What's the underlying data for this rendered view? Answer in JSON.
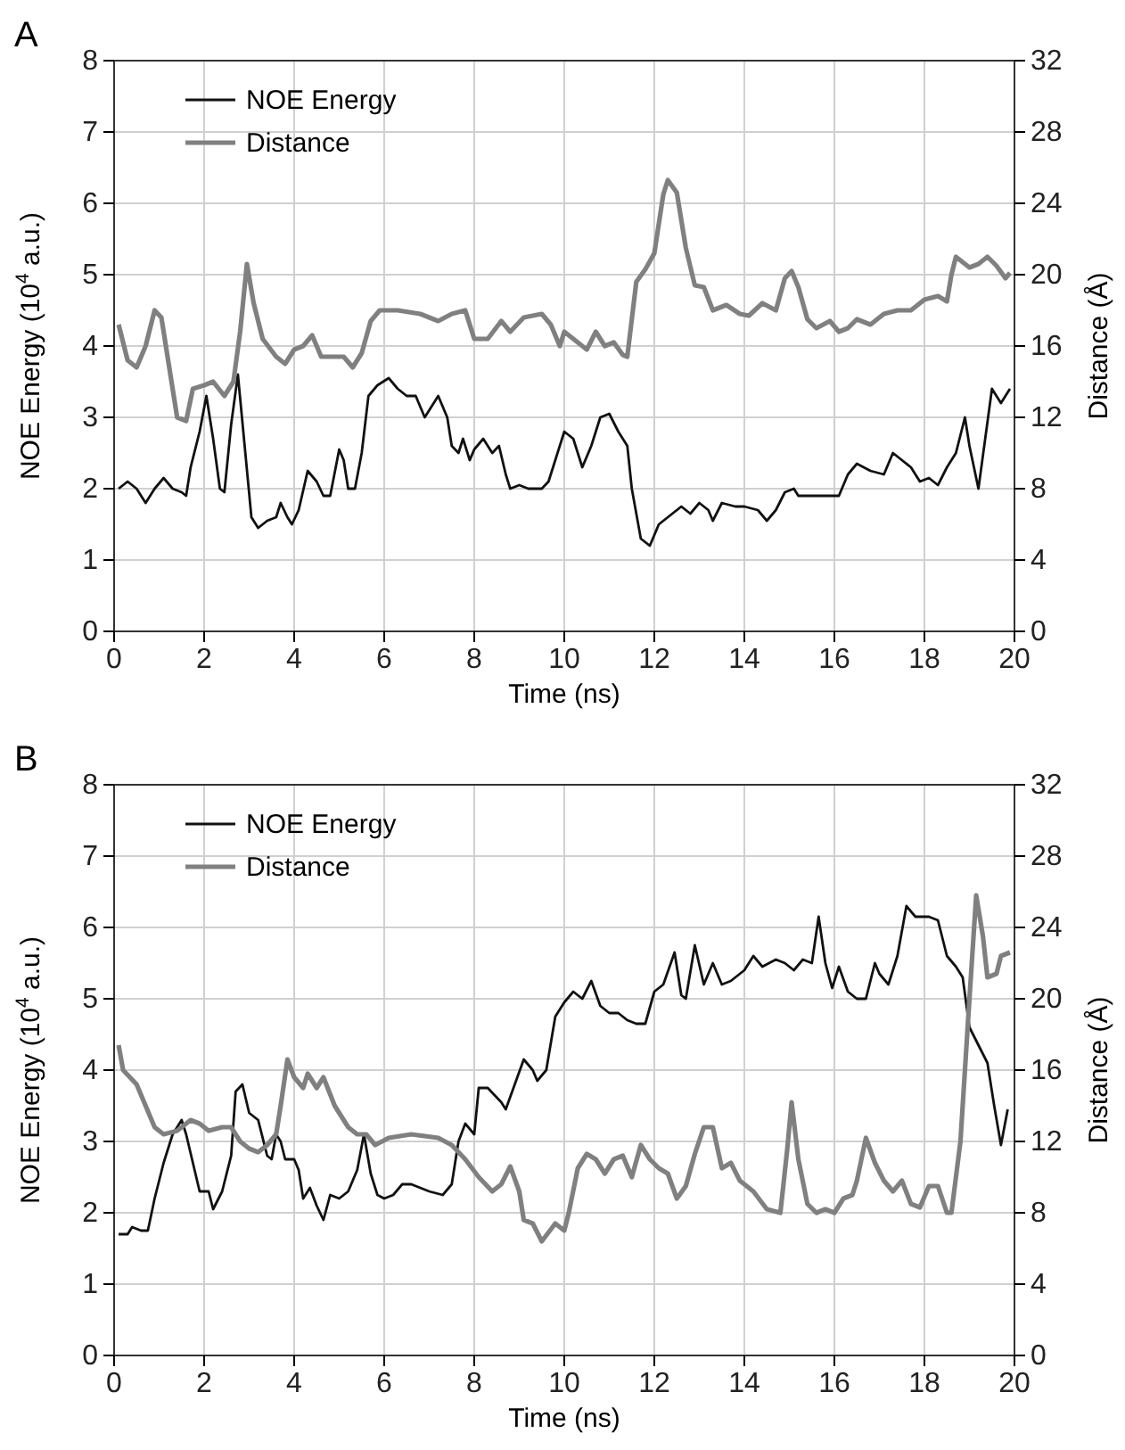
{
  "chart_data": [
    {
      "type": "line",
      "title": "A",
      "xlabel": "Time (ns)",
      "ylabel": "NOE Energy (10$^{4}$ a.u.)",
      "y2label": "Distance (Å)",
      "xlim": [
        0,
        20
      ],
      "xticks": [
        0,
        2,
        4,
        6,
        8,
        10,
        12,
        14,
        16,
        18,
        20
      ],
      "ylim": [
        0,
        8
      ],
      "yticks": [
        0,
        1,
        2,
        3,
        4,
        5,
        6,
        7,
        8
      ],
      "y2lim": [
        0,
        32
      ],
      "y2ticks": [
        0,
        4,
        8,
        12,
        16,
        20,
        24,
        28,
        32
      ],
      "grid": true,
      "legend": "top left",
      "marker": "none",
      "line_style": "solid",
      "series": [
        {
          "name": "NOE Energy",
          "color": "#111111",
          "x": [
            0.1,
            0.3,
            0.5,
            0.7,
            0.9,
            1.1,
            1.3,
            1.5,
            1.6,
            1.7,
            1.9,
            2.05,
            2.2,
            2.35,
            2.45,
            2.6,
            2.75,
            2.9,
            3.05,
            3.2,
            3.4,
            3.6,
            3.7,
            3.85,
            3.95,
            4.1,
            4.3,
            4.5,
            4.65,
            4.8,
            5.0,
            5.1,
            5.2,
            5.35,
            5.5,
            5.65,
            5.85,
            6.1,
            6.3,
            6.5,
            6.7,
            6.9,
            7.0,
            7.2,
            7.4,
            7.5,
            7.65,
            7.75,
            7.9,
            8.0,
            8.2,
            8.4,
            8.55,
            8.7,
            8.8,
            9.0,
            9.2,
            9.5,
            9.65,
            9.8,
            10.0,
            10.2,
            10.4,
            10.6,
            10.8,
            11.0,
            11.2,
            11.4,
            11.5,
            11.7,
            11.9,
            12.1,
            12.3,
            12.6,
            12.8,
            13.0,
            13.2,
            13.3,
            13.5,
            13.8,
            14.0,
            14.3,
            14.5,
            14.7,
            14.9,
            15.1,
            15.2,
            15.5,
            15.8,
            16.1,
            16.3,
            16.5,
            16.8,
            17.1,
            17.3,
            17.5,
            17.7,
            17.9,
            18.1,
            18.3,
            18.5,
            18.7,
            18.9,
            19.0,
            19.2,
            19.35,
            19.5,
            19.7,
            19.9
          ],
          "values": [
            2.0,
            2.1,
            2.0,
            1.8,
            2.0,
            2.15,
            2.0,
            1.95,
            1.9,
            2.3,
            2.8,
            3.3,
            2.7,
            2.0,
            1.95,
            2.9,
            3.6,
            2.6,
            1.6,
            1.45,
            1.55,
            1.6,
            1.8,
            1.6,
            1.5,
            1.7,
            2.25,
            2.1,
            1.9,
            1.9,
            2.55,
            2.4,
            2.0,
            2.0,
            2.5,
            3.3,
            3.45,
            3.55,
            3.4,
            3.3,
            3.3,
            3.0,
            3.1,
            3.3,
            3.0,
            2.6,
            2.5,
            2.7,
            2.4,
            2.55,
            2.7,
            2.5,
            2.6,
            2.2,
            2.0,
            2.05,
            2.0,
            2.0,
            2.1,
            2.4,
            2.8,
            2.7,
            2.3,
            2.6,
            3.0,
            3.05,
            2.8,
            2.6,
            2.0,
            1.3,
            1.2,
            1.5,
            1.6,
            1.75,
            1.65,
            1.8,
            1.7,
            1.55,
            1.8,
            1.75,
            1.75,
            1.7,
            1.55,
            1.7,
            1.95,
            2.0,
            1.9,
            1.9,
            1.9,
            1.9,
            2.2,
            2.35,
            2.25,
            2.2,
            2.5,
            2.4,
            2.3,
            2.1,
            2.15,
            2.05,
            2.3,
            2.5,
            3.0,
            2.6,
            2.0,
            2.7,
            3.4,
            3.2,
            3.4
          ]
        },
        {
          "name": "Distance",
          "color": "#808080",
          "axis": "y2",
          "x": [
            0.1,
            0.3,
            0.5,
            0.7,
            0.9,
            1.05,
            1.2,
            1.4,
            1.6,
            1.75,
            2.0,
            2.2,
            2.45,
            2.65,
            2.8,
            2.95,
            3.1,
            3.3,
            3.6,
            3.8,
            4.0,
            4.2,
            4.4,
            4.6,
            4.9,
            5.1,
            5.3,
            5.5,
            5.7,
            5.9,
            6.3,
            6.8,
            7.2,
            7.5,
            7.8,
            8.0,
            8.3,
            8.6,
            8.8,
            9.1,
            9.5,
            9.7,
            9.9,
            10.0,
            10.3,
            10.5,
            10.7,
            10.9,
            11.1,
            11.3,
            11.4,
            11.6,
            11.8,
            12.0,
            12.2,
            12.3,
            12.5,
            12.7,
            12.9,
            13.1,
            13.3,
            13.6,
            13.9,
            14.1,
            14.4,
            14.7,
            14.9,
            15.05,
            15.2,
            15.4,
            15.6,
            15.9,
            16.1,
            16.3,
            16.5,
            16.8,
            17.1,
            17.4,
            17.7,
            18.0,
            18.3,
            18.5,
            18.6,
            18.7,
            19.0,
            19.2,
            19.4,
            19.6,
            19.8,
            19.9
          ],
          "values": [
            17.2,
            15.2,
            14.8,
            16,
            18,
            17.6,
            15.2,
            12,
            11.8,
            13.6,
            13.8,
            14,
            13.2,
            14,
            16.8,
            20.6,
            18.4,
            16.4,
            15.4,
            15,
            15.8,
            16,
            16.6,
            15.4,
            15.4,
            15.4,
            14.8,
            15.6,
            17.4,
            18,
            18,
            17.8,
            17.4,
            17.8,
            18,
            16.4,
            16.4,
            17.4,
            16.8,
            17.6,
            17.8,
            17.2,
            16,
            16.8,
            16.2,
            15.8,
            16.8,
            16.0,
            16.2,
            15.5,
            15.4,
            19.6,
            20.3,
            21.2,
            24.5,
            25.3,
            24.6,
            21.5,
            19.4,
            19.3,
            18,
            18.3,
            17.8,
            17.7,
            18.4,
            18,
            19.8,
            20.2,
            19.3,
            17.5,
            17.0,
            17.4,
            16.8,
            17.0,
            17.5,
            17.2,
            17.8,
            18,
            18,
            18.6,
            18.8,
            18.5,
            20.0,
            21.0,
            20.4,
            20.6,
            21.0,
            20.5,
            19.8,
            20.1
          ]
        }
      ]
    },
    {
      "type": "line",
      "title": "B",
      "xlabel": "Time (ns)",
      "ylabel": "NOE Energy (10$^{4}$ a.u.)",
      "y2label": "Distance (Å)",
      "xlim": [
        0,
        20
      ],
      "xticks": [
        0,
        2,
        4,
        6,
        8,
        10,
        12,
        14,
        16,
        18,
        20
      ],
      "ylim": [
        0,
        8
      ],
      "yticks": [
        0,
        1,
        2,
        3,
        4,
        5,
        6,
        7,
        8
      ],
      "y2lim": [
        0,
        32
      ],
      "y2ticks": [
        0,
        4,
        8,
        12,
        16,
        20,
        24,
        28,
        32
      ],
      "grid": true,
      "legend": "top left",
      "marker": "none",
      "line_style": "solid",
      "series": [
        {
          "name": "NOE Energy",
          "color": "#111111",
          "x": [
            0.1,
            0.3,
            0.4,
            0.6,
            0.75,
            0.9,
            1.1,
            1.3,
            1.5,
            1.6,
            1.75,
            1.9,
            2.1,
            2.2,
            2.4,
            2.6,
            2.7,
            2.85,
            3.0,
            3.2,
            3.4,
            3.5,
            3.6,
            3.7,
            3.8,
            4.0,
            4.1,
            4.2,
            4.35,
            4.5,
            4.65,
            4.8,
            5.0,
            5.2,
            5.4,
            5.55,
            5.7,
            5.85,
            6.0,
            6.2,
            6.4,
            6.6,
            6.8,
            7.0,
            7.3,
            7.5,
            7.65,
            7.8,
            8.0,
            8.1,
            8.3,
            8.6,
            8.7,
            8.9,
            9.1,
            9.3,
            9.4,
            9.6,
            9.8,
            10.0,
            10.2,
            10.4,
            10.6,
            10.8,
            11.0,
            11.2,
            11.4,
            11.6,
            11.8,
            12.0,
            12.2,
            12.45,
            12.6,
            12.7,
            12.9,
            13.1,
            13.3,
            13.5,
            13.7,
            14.0,
            14.2,
            14.4,
            14.7,
            14.9,
            15.1,
            15.3,
            15.5,
            15.65,
            15.8,
            15.95,
            16.1,
            16.3,
            16.5,
            16.7,
            16.9,
            17.0,
            17.2,
            17.4,
            17.6,
            17.8,
            18.1,
            18.3,
            18.5,
            18.7,
            18.85,
            19.0,
            19.2,
            19.4,
            19.55,
            19.7,
            19.85
          ],
          "values": [
            1.7,
            1.7,
            1.8,
            1.75,
            1.75,
            2.2,
            2.7,
            3.1,
            3.3,
            3.1,
            2.7,
            2.3,
            2.3,
            2.05,
            2.3,
            2.8,
            3.7,
            3.8,
            3.4,
            3.3,
            2.8,
            2.75,
            3.1,
            3.0,
            2.75,
            2.75,
            2.6,
            2.2,
            2.35,
            2.1,
            1.9,
            2.25,
            2.2,
            2.3,
            2.6,
            3.1,
            2.55,
            2.25,
            2.2,
            2.25,
            2.4,
            2.4,
            2.35,
            2.3,
            2.25,
            2.4,
            3.0,
            3.25,
            3.1,
            3.75,
            3.75,
            3.55,
            3.45,
            3.8,
            4.15,
            4.0,
            3.85,
            4.0,
            4.75,
            4.95,
            5.1,
            5.0,
            5.25,
            4.9,
            4.8,
            4.8,
            4.7,
            4.65,
            4.65,
            5.1,
            5.2,
            5.65,
            5.05,
            5.0,
            5.75,
            5.2,
            5.5,
            5.2,
            5.25,
            5.4,
            5.6,
            5.45,
            5.55,
            5.5,
            5.4,
            5.55,
            5.5,
            6.15,
            5.5,
            5.15,
            5.45,
            5.1,
            5.0,
            5.0,
            5.5,
            5.35,
            5.2,
            5.6,
            6.3,
            6.15,
            6.15,
            6.1,
            5.6,
            5.45,
            5.3,
            4.6,
            4.35,
            4.1,
            3.5,
            2.95,
            3.45
          ]
        },
        {
          "name": "Distance",
          "color": "#808080",
          "axis": "y2",
          "x": [
            0.1,
            0.2,
            0.5,
            0.7,
            0.9,
            1.1,
            1.4,
            1.7,
            1.9,
            2.1,
            2.4,
            2.6,
            2.8,
            3.0,
            3.2,
            3.4,
            3.6,
            3.7,
            3.85,
            4.0,
            4.2,
            4.3,
            4.5,
            4.65,
            4.9,
            5.2,
            5.4,
            5.6,
            5.8,
            6.1,
            6.6,
            7.2,
            7.5,
            7.8,
            8.1,
            8.4,
            8.6,
            8.8,
            9.0,
            9.1,
            9.3,
            9.5,
            9.8,
            10.0,
            10.1,
            10.3,
            10.5,
            10.7,
            10.9,
            11.1,
            11.3,
            11.5,
            11.7,
            11.9,
            12.1,
            12.3,
            12.5,
            12.7,
            12.9,
            13.1,
            13.3,
            13.5,
            13.7,
            13.9,
            14.2,
            14.5,
            14.8,
            14.95,
            15.05,
            15.2,
            15.4,
            15.6,
            15.8,
            16.0,
            16.2,
            16.4,
            16.5,
            16.7,
            16.9,
            17.1,
            17.3,
            17.5,
            17.7,
            17.9,
            18.1,
            18.3,
            18.5,
            18.6,
            18.8,
            19.0,
            19.15,
            19.3,
            19.4,
            19.6,
            19.7,
            19.9
          ],
          "values": [
            17.4,
            16,
            15.2,
            14,
            12.8,
            12.4,
            12.6,
            13.2,
            13,
            12.6,
            12.8,
            12.8,
            12,
            11.6,
            11.4,
            11.8,
            12.4,
            14,
            16.6,
            15.6,
            15,
            15.8,
            15,
            15.6,
            14,
            12.8,
            12.4,
            12.4,
            11.8,
            12.2,
            12.4,
            12.2,
            11.8,
            11,
            10,
            9.2,
            9.6,
            10.6,
            9.2,
            7.6,
            7.4,
            6.4,
            7.4,
            7.0,
            8.0,
            10.5,
            11.3,
            11.0,
            10.2,
            11.0,
            11.2,
            10.0,
            11.8,
            11.0,
            10.5,
            10.2,
            8.8,
            9.5,
            11.3,
            12.8,
            12.8,
            10.5,
            10.8,
            9.8,
            9.2,
            8.2,
            8.0,
            11.5,
            14.2,
            11.0,
            8.5,
            8.0,
            8.2,
            8.0,
            8.8,
            9.0,
            9.8,
            12.2,
            10.8,
            9.8,
            9.2,
            9.8,
            8.5,
            8.3,
            9.5,
            9.5,
            8.0,
            8.0,
            12,
            20,
            25.8,
            23.5,
            21.2,
            21.4,
            22.4,
            22.6
          ]
        }
      ]
    }
  ]
}
